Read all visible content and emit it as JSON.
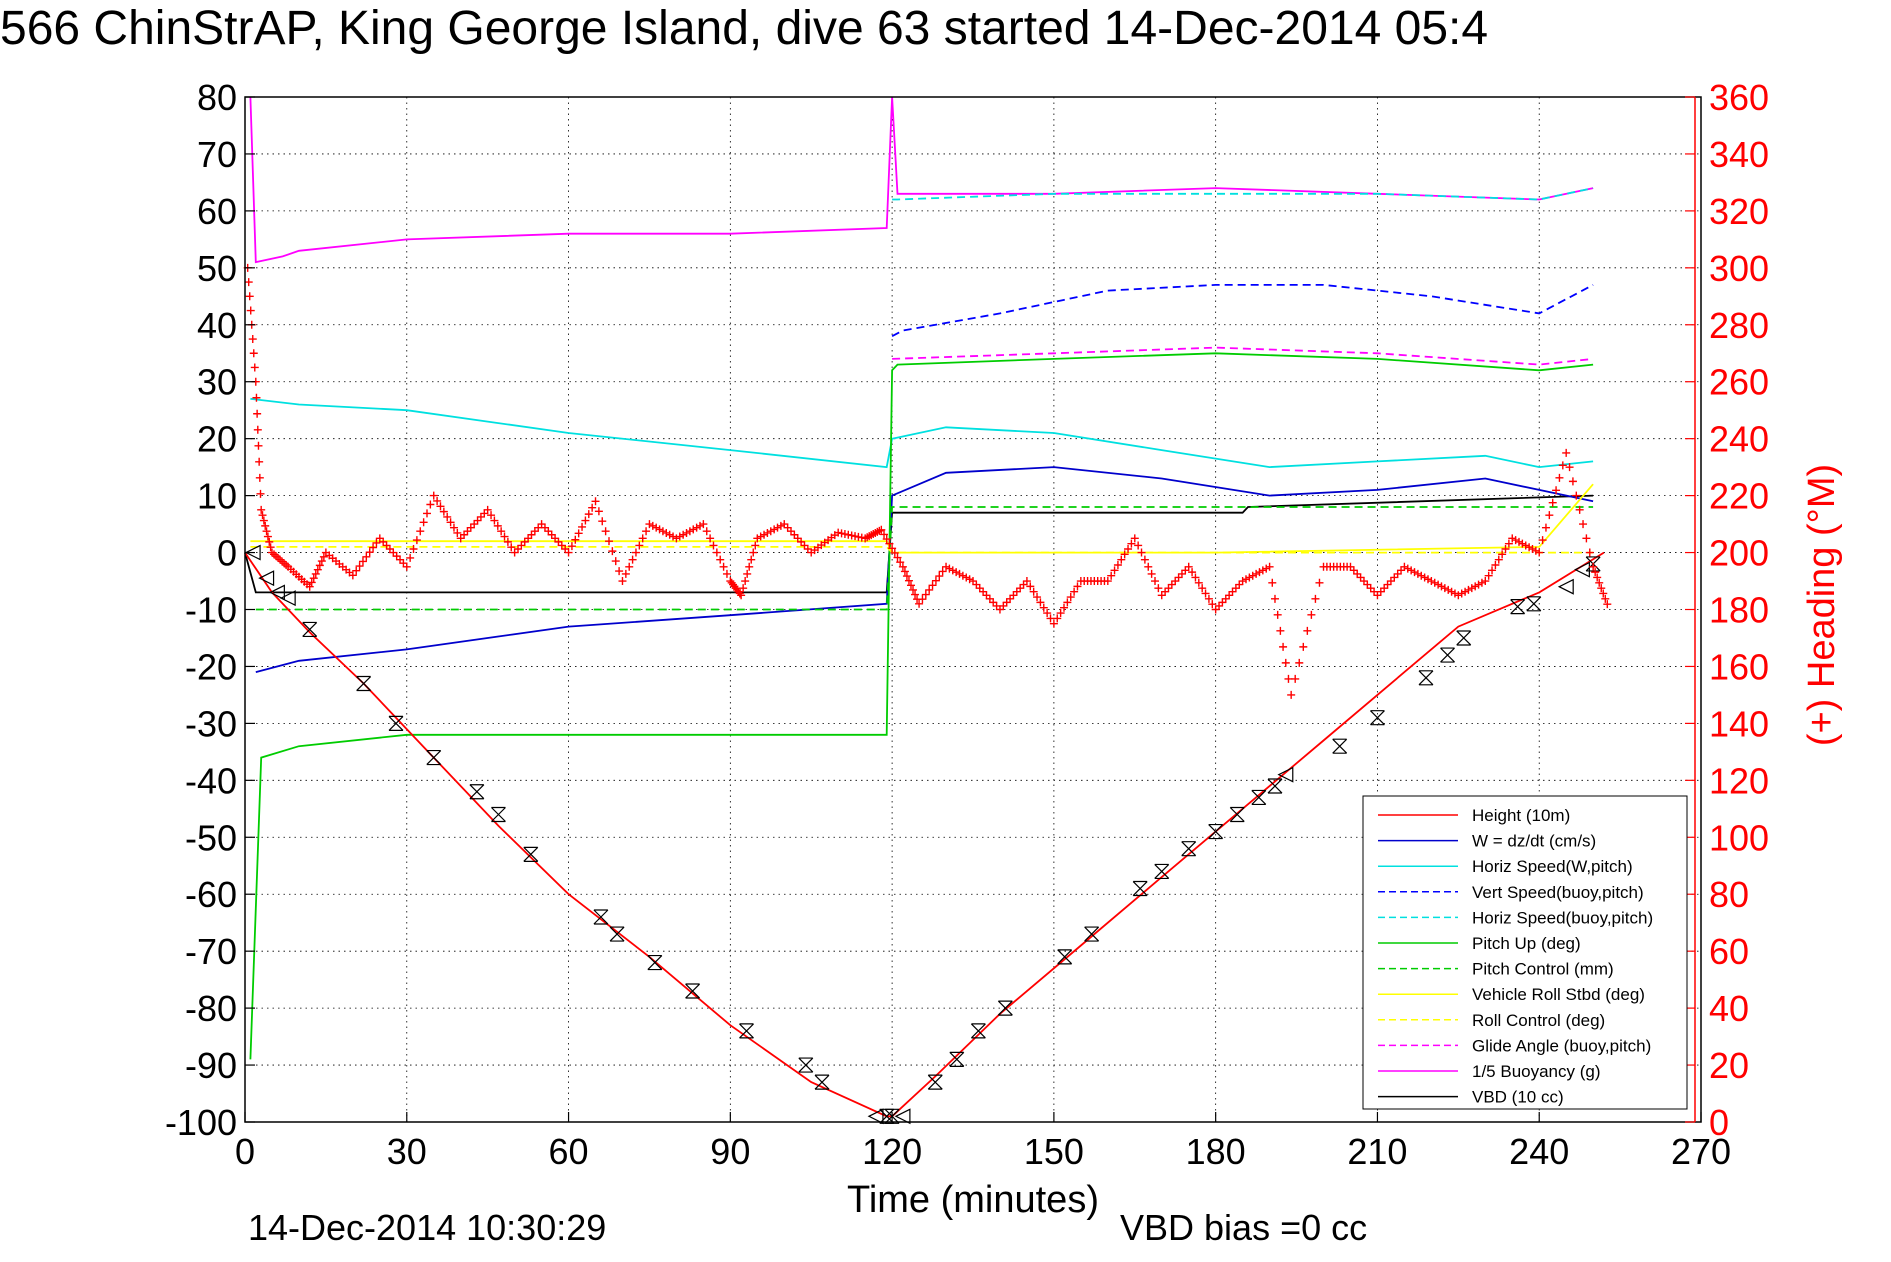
{
  "chart_data": {
    "type": "line",
    "title": "566 ChinStrAP, King George Island, dive 63 started 14-Dec-2014 05:4",
    "xlabel": "Time (minutes)",
    "ylabel": "",
    "ylabel_right": "(+) Heading (°M)",
    "xlim": [
      0,
      270
    ],
    "ylim": [
      -100,
      80
    ],
    "ylim_right": [
      0,
      360
    ],
    "x_ticks": [
      0,
      30,
      60,
      90,
      120,
      150,
      180,
      210,
      240,
      270
    ],
    "y_ticks": [
      80,
      70,
      60,
      50,
      40,
      30,
      20,
      10,
      0,
      -10,
      -20,
      -30,
      -40,
      -50,
      -60,
      -70,
      -80,
      -90,
      -100
    ],
    "y_ticks_right": [
      360,
      340,
      320,
      300,
      280,
      260,
      240,
      220,
      200,
      180,
      160,
      140,
      120,
      100,
      80,
      60,
      40,
      20,
      0
    ],
    "grid": true,
    "legend_position": "bottom-right",
    "footer_left": "14-Dec-2014 10:30:29",
    "footer_right": "VBD bias =0 cc",
    "series": [
      {
        "name": "Height (10m)",
        "color": "#ff0000",
        "style": "solid",
        "x": [
          0,
          5,
          12,
          22,
          35,
          47,
          60,
          75,
          90,
          105,
          119,
          120,
          128,
          140,
          155,
          170,
          185,
          200,
          215,
          225,
          240,
          252
        ],
        "y": [
          0,
          -7,
          -14,
          -23,
          -36,
          -48,
          -60,
          -71,
          -83,
          -93,
          -99,
          -99,
          -92,
          -81,
          -69,
          -57,
          -45,
          -33,
          -21,
          -13,
          -7,
          0
        ]
      },
      {
        "name": "W = dz/dt (cm/s)",
        "color": "#0000cc",
        "style": "solid",
        "x": [
          2,
          10,
          30,
          60,
          90,
          119,
          120,
          130,
          150,
          170,
          190,
          210,
          230,
          240,
          250
        ],
        "y": [
          -21,
          -19,
          -17,
          -13,
          -11,
          -9,
          10,
          14,
          15,
          13,
          10,
          11,
          13,
          11,
          9
        ]
      },
      {
        "name": "Horiz Speed(W,pitch)",
        "color": "#00e0e0",
        "style": "solid",
        "x": [
          1,
          10,
          30,
          60,
          90,
          119,
          120,
          130,
          150,
          170,
          190,
          210,
          230,
          240,
          250
        ],
        "y": [
          27,
          26,
          25,
          21,
          18,
          15,
          20,
          22,
          21,
          18,
          15,
          16,
          17,
          15,
          16
        ]
      },
      {
        "name": "Vert Speed(buoy,pitch)",
        "color": "#0000ff",
        "style": "dashed",
        "x": [
          120,
          122,
          140,
          160,
          180,
          200,
          220,
          240,
          250
        ],
        "y": [
          38,
          39,
          42,
          46,
          47,
          47,
          45,
          42,
          47
        ]
      },
      {
        "name": "Horiz Speed(buoy,pitch)",
        "color": "#00e0e0",
        "style": "dashed",
        "x": [
          120,
          121,
          150,
          180,
          210,
          240,
          250
        ],
        "y": [
          62,
          62,
          63,
          63,
          63,
          62,
          64
        ]
      },
      {
        "name": "Pitch Up (deg)",
        "color": "#00cc00",
        "style": "solid",
        "x": [
          1,
          3,
          10,
          30,
          60,
          90,
          119,
          120,
          121,
          150,
          180,
          210,
          240,
          250
        ],
        "y": [
          -89,
          -36,
          -34,
          -32,
          -32,
          -32,
          -32,
          32,
          33,
          34,
          35,
          34,
          32,
          33
        ]
      },
      {
        "name": "Pitch Control (mm)",
        "color": "#00cc00",
        "style": "dashed",
        "x": [
          2,
          119,
          120,
          250
        ],
        "y": [
          -10,
          -10,
          8,
          8
        ]
      },
      {
        "name": "Vehicle Roll Stbd (deg)",
        "color": "#ffff00",
        "style": "solid",
        "x": [
          1,
          20,
          60,
          119,
          120,
          180,
          240,
          250
        ],
        "y": [
          2,
          2,
          2,
          2,
          0,
          0,
          1,
          12
        ]
      },
      {
        "name": "Roll Control (deg)",
        "color": "#ffff00",
        "style": "dashed",
        "x": [
          1,
          119,
          120,
          250
        ],
        "y": [
          1,
          1,
          0,
          0
        ]
      },
      {
        "name": "Glide Angle (buoy,pitch)",
        "color": "#ff00ff",
        "style": "dashed",
        "x": [
          120,
          150,
          180,
          210,
          240,
          250
        ],
        "y": [
          34,
          35,
          36,
          35,
          33,
          34
        ]
      },
      {
        "name": "1/5 Buoyancy (g)",
        "color": "#ff00ff",
        "style": "solid",
        "x": [
          1,
          2,
          7,
          10,
          30,
          60,
          90,
          119,
          120,
          121,
          150,
          180,
          210,
          240,
          250
        ],
        "y": [
          80,
          51,
          52,
          53,
          55,
          56,
          56,
          57,
          80,
          63,
          63,
          64,
          63,
          62,
          64
        ]
      },
      {
        "name": "VBD (10 cc)",
        "color": "#000000",
        "style": "solid",
        "x": [
          0,
          2,
          60,
          119,
          120,
          185,
          186,
          250
        ],
        "y": [
          0,
          -7,
          -7,
          -7,
          7,
          7,
          8,
          10
        ]
      }
    ],
    "heading_series": {
      "name": "Heading",
      "color": "#ff0000",
      "marker": "+",
      "x": [
        0.5,
        2,
        3,
        5,
        8,
        12,
        15,
        20,
        25,
        30,
        35,
        40,
        45,
        50,
        55,
        60,
        65,
        70,
        75,
        80,
        85,
        90,
        92,
        95,
        100,
        105,
        110,
        115,
        118,
        122,
        125,
        130,
        135,
        140,
        145,
        150,
        155,
        160,
        165,
        170,
        175,
        180,
        185,
        190,
        194,
        200,
        205,
        210,
        215,
        220,
        225,
        230,
        235,
        240,
        245,
        250,
        253
      ],
      "y": [
        300,
        260,
        215,
        200,
        195,
        188,
        200,
        192,
        205,
        195,
        220,
        205,
        215,
        200,
        210,
        200,
        218,
        190,
        210,
        205,
        210,
        190,
        185,
        205,
        210,
        200,
        207,
        205,
        208,
        195,
        182,
        195,
        190,
        180,
        190,
        175,
        190,
        190,
        205,
        185,
        195,
        180,
        190,
        195,
        150,
        195,
        195,
        185,
        195,
        190,
        185,
        190,
        205,
        200,
        235,
        195,
        180
      ]
    },
    "markers": {
      "x_x": [
        12,
        22,
        28,
        35,
        43,
        47,
        53,
        66,
        69,
        76,
        83,
        93,
        104,
        107,
        119,
        120,
        128,
        132,
        136,
        141,
        152,
        157,
        166,
        170,
        175,
        180,
        184,
        188,
        191,
        203,
        210,
        219,
        223,
        226,
        236,
        239,
        250
      ],
      "x_y": [
        -13.5,
        -23,
        -30,
        -36,
        -42,
        -46,
        -53,
        -64,
        -67,
        -72,
        -77,
        -84,
        -90,
        -93,
        -99,
        -99,
        -93,
        -89,
        -84,
        -80,
        -71,
        -67,
        -59,
        -56,
        -52,
        -49,
        -46,
        -43,
        -41,
        -34,
        -29,
        -22,
        -18,
        -15,
        -9.5,
        -9,
        -2
      ],
      "tri_x": [
        1.5,
        4,
        6,
        8,
        117,
        122,
        193,
        245,
        248
      ],
      "tri_y": [
        0,
        -4.5,
        -7,
        -8,
        -99,
        -99,
        -39,
        -6,
        -3
      ]
    }
  }
}
